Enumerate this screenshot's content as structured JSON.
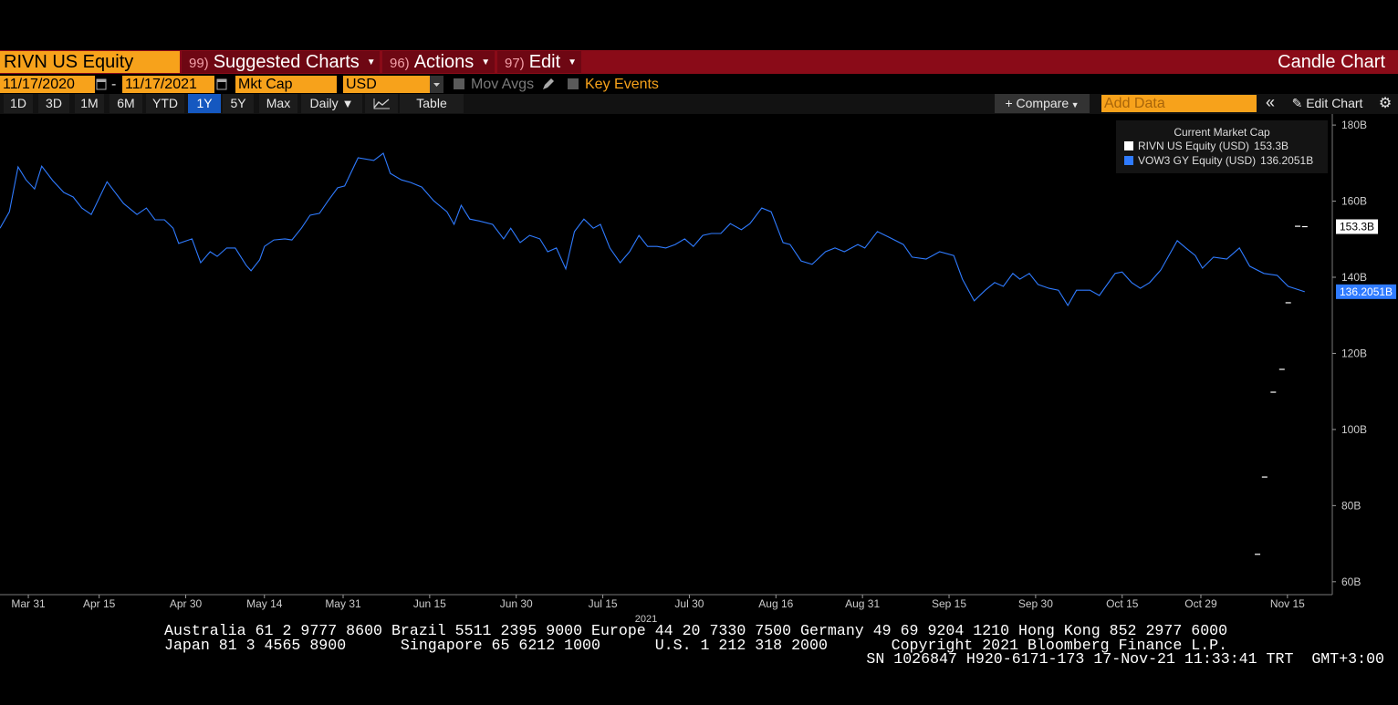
{
  "toolbar": {
    "security": "RIVN US Equity",
    "menus": [
      {
        "num": "99)",
        "label": "Suggested Charts"
      },
      {
        "num": "96)",
        "label": "Actions"
      },
      {
        "num": "97)",
        "label": "Edit"
      }
    ],
    "chart_kind": "Candle Chart"
  },
  "controls": {
    "start_date": "11/17/2020",
    "date_separator": "-",
    "end_date": "11/17/2021",
    "field": "Mkt Cap",
    "currency": "USD",
    "mov_avgs": "Mov Avgs",
    "key_events": "Key Events"
  },
  "periods": [
    "1D",
    "3D",
    "1M",
    "6M",
    "YTD",
    "1Y",
    "5Y",
    "Max"
  ],
  "active_period": "1Y",
  "frequency": "Daily",
  "table": "Table",
  "compare": "Compare",
  "add_data": "Add Data",
  "edit_chart": "Edit Chart",
  "chart_data": {
    "type": "line",
    "legend_title": "Current Market Cap",
    "xlabel": "2021",
    "xlim": [
      -3.6,
      165.7
    ],
    "xticks": [
      {
        "value": 0,
        "label": "Mar 31"
      },
      {
        "value": 9,
        "label": "Apr 15"
      },
      {
        "value": 20,
        "label": "Apr 30"
      },
      {
        "value": 30,
        "label": "May 14"
      },
      {
        "value": 40,
        "label": "May 31"
      },
      {
        "value": 51,
        "label": "Jun 15"
      },
      {
        "value": 62,
        "label": "Jun 30"
      },
      {
        "value": 73,
        "label": "Jul 15"
      },
      {
        "value": 84,
        "label": "Jul 30"
      },
      {
        "value": 95,
        "label": "Aug 16"
      },
      {
        "value": 106,
        "label": "Aug 31"
      },
      {
        "value": 117,
        "label": "Sep 15"
      },
      {
        "value": 128,
        "label": "Sep 30"
      },
      {
        "value": 139,
        "label": "Oct 15"
      },
      {
        "value": 149,
        "label": "Oct 29"
      },
      {
        "value": 160,
        "label": "Nov 15"
      }
    ],
    "ylim": [
      56.6,
      182.9
    ],
    "yticks": [
      {
        "value": 60,
        "label": "60B"
      },
      {
        "value": 80,
        "label": "80B"
      },
      {
        "value": 100,
        "label": "100B"
      },
      {
        "value": 120,
        "label": "120B"
      },
      {
        "value": 140,
        "label": "140B"
      },
      {
        "value": 160,
        "label": "160B"
      },
      {
        "value": 180,
        "label": "180B"
      }
    ],
    "series": [
      {
        "name": "RIVN US Equity (USD)",
        "color": "#ffffff",
        "style": "dash",
        "current": 153.3,
        "current_label": "153.3B",
        "x": [
          156.2,
          157.1,
          158.2,
          159.3,
          160.1,
          161.3,
          162.2
        ],
        "values": [
          67.2,
          87.5,
          109.8,
          115.8,
          133.3,
          153.4,
          153.3
        ]
      },
      {
        "name": "VOW3 GY Equity (USD)",
        "color": "#2f7bff",
        "style": "line",
        "current": 136.2051,
        "current_label": "136.2051B",
        "x": [
          -3.6,
          -2.4,
          -1.3,
          -0.3,
          0.8,
          1.7,
          3.1,
          4.5,
          5.7,
          6.8,
          8.0,
          10.0,
          12.1,
          13.8,
          15.0,
          16.1,
          17.3,
          18.4,
          19.1,
          20.8,
          21.9,
          23.1,
          24.0,
          25.2,
          26.3,
          27.7,
          28.3,
          29.4,
          30.0,
          31.2,
          32.6,
          33.5,
          34.7,
          35.8,
          37.0,
          38.1,
          39.3,
          40.2,
          41.9,
          43.9,
          45.1,
          46.0,
          47.4,
          48.6,
          50.0,
          51.5,
          53.2,
          54.1,
          55.0,
          56.1,
          57.3,
          59.0,
          60.4,
          61.3,
          62.5,
          63.7,
          65.0,
          66.0,
          67.1,
          68.3,
          69.4,
          70.6,
          71.8,
          72.7,
          73.9,
          75.2,
          76.4,
          77.6,
          78.7,
          79.9,
          81.0,
          82.2,
          83.4,
          84.5,
          85.7,
          86.8,
          88.0,
          89.2,
          90.6,
          91.7,
          93.2,
          94.4,
          95.9,
          96.8,
          98.2,
          99.6,
          101.3,
          102.5,
          103.7,
          105.4,
          106.3,
          107.9,
          109.4,
          111.2,
          112.3,
          114.1,
          115.8,
          117.6,
          118.7,
          120.2,
          121.6,
          122.8,
          123.9,
          125.1,
          126.0,
          127.2,
          128.3,
          129.7,
          130.9,
          132.1,
          133.2,
          134.9,
          136.1,
          138.1,
          139.0,
          140.2,
          141.3,
          142.5,
          143.9,
          146.0,
          147.1,
          148.3,
          149.2,
          150.6,
          152.3,
          153.9,
          155.2,
          157.0,
          158.7,
          160.1,
          162.2
        ],
        "values": [
          152.9,
          157.2,
          169.0,
          165.6,
          163.2,
          169.2,
          165.4,
          162.3,
          161.1,
          158.2,
          156.5,
          165.1,
          159.4,
          156.5,
          158.2,
          155.1,
          155.1,
          152.9,
          148.9,
          150.1,
          143.8,
          146.7,
          145.5,
          147.7,
          147.7,
          143.1,
          141.7,
          144.6,
          148.1,
          149.8,
          150.1,
          149.8,
          152.9,
          156.3,
          156.8,
          160.1,
          163.5,
          164.0,
          171.4,
          170.7,
          172.6,
          167.3,
          165.6,
          164.9,
          163.7,
          160.1,
          157.2,
          153.9,
          158.9,
          155.3,
          154.8,
          153.9,
          150.1,
          152.9,
          149.1,
          151.0,
          150.1,
          146.7,
          147.7,
          142.2,
          152.0,
          155.3,
          152.9,
          153.9,
          147.7,
          143.8,
          146.7,
          151.0,
          148.1,
          148.1,
          147.7,
          148.6,
          150.1,
          148.1,
          151.0,
          151.5,
          151.5,
          154.1,
          152.5,
          154.1,
          158.2,
          157.2,
          149.1,
          148.6,
          144.3,
          143.4,
          146.7,
          147.7,
          146.7,
          148.6,
          147.7,
          152.0,
          150.5,
          148.6,
          145.3,
          144.8,
          146.7,
          145.7,
          139.5,
          133.8,
          136.6,
          138.6,
          137.6,
          141.0,
          139.5,
          141.0,
          138.1,
          137.1,
          136.6,
          132.6,
          136.6,
          136.6,
          135.2,
          141.0,
          141.4,
          138.6,
          137.1,
          138.6,
          141.9,
          149.6,
          147.7,
          145.7,
          142.4,
          145.3,
          144.8,
          147.7,
          142.9,
          141.0,
          140.5,
          137.6,
          136.2
        ]
      }
    ]
  },
  "footer": [
    "Australia 61 2 9777 8600 Brazil 5511 2395 9000 Europe 44 20 7330 7500 Germany 49 69 9204 1210 Hong Kong 852 2977 6000",
    "Japan 81 3 4565 8900      Singapore 65 6212 1000      U.S. 1 212 318 2000       Copyright 2021 Bloomberg Finance L.P.",
    "SN 1026847 H920-6171-173 17-Nov-21 11:33:41 TRT  GMT+3:00"
  ]
}
